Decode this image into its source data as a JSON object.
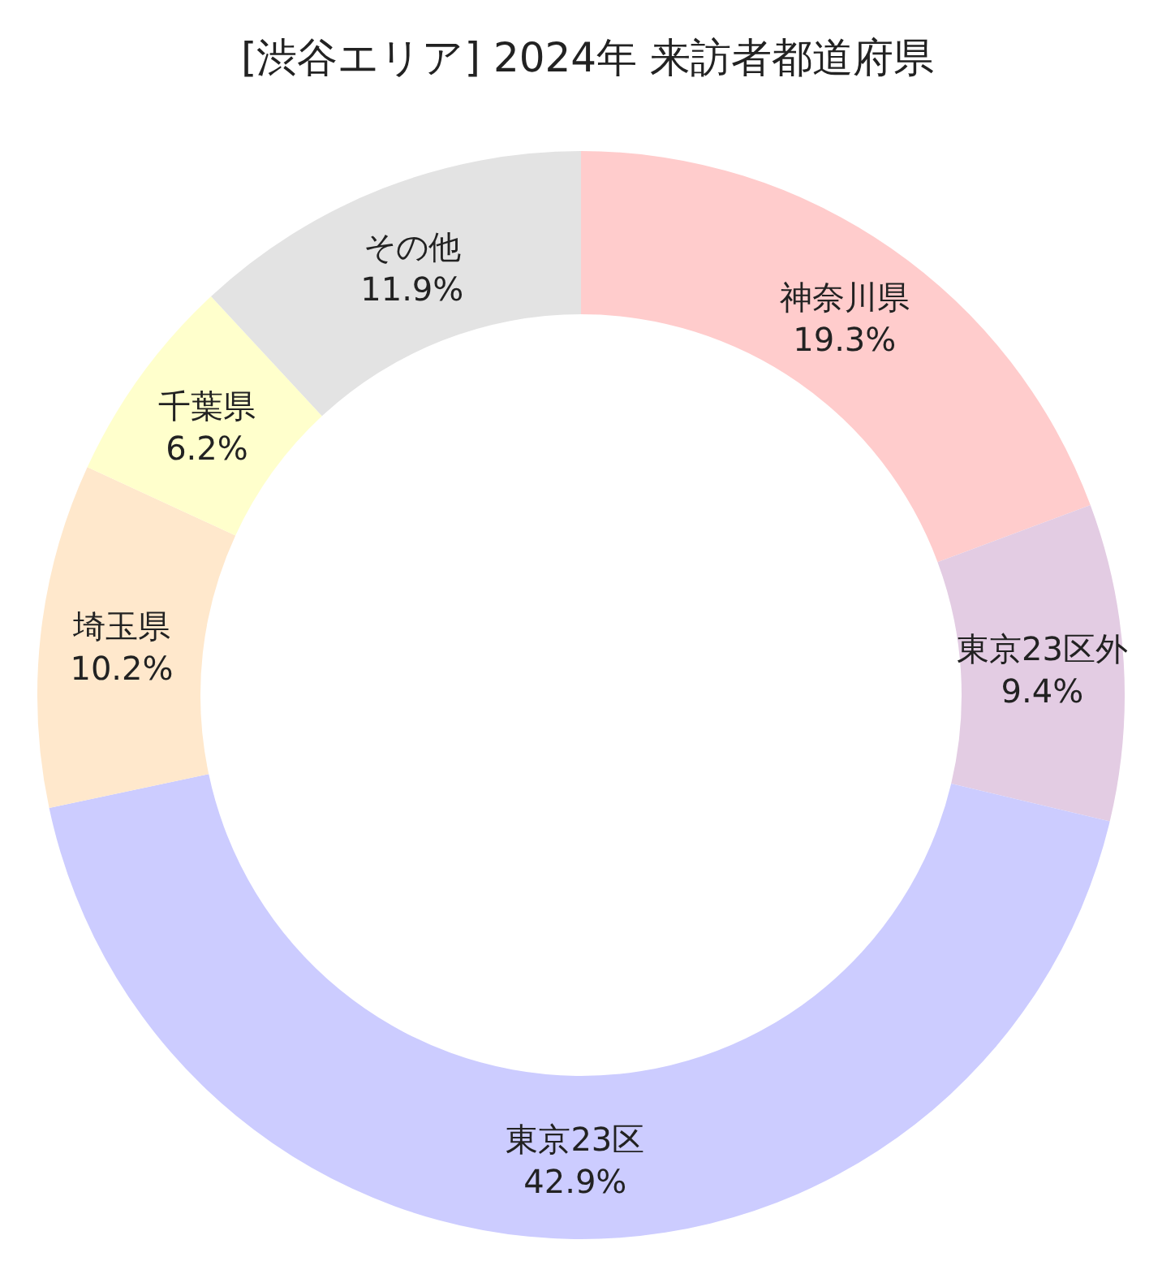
{
  "chart_data": {
    "type": "donut",
    "title": "[渋谷エリア] 2024年 来訪者都道府県",
    "categories": [
      "神奈川県",
      "東京23区外",
      "東京23区",
      "埼玉県",
      "千葉県",
      "その他"
    ],
    "values": [
      19.3,
      9.4,
      42.9,
      10.2,
      6.2,
      11.9
    ],
    "value_labels": [
      "19.3%",
      "9.4%",
      "42.9%",
      "10.2%",
      "6.2%",
      "11.9%"
    ],
    "colors": [
      "#ffcccc",
      "#e3cce3",
      "#ccccff",
      "#ffe8cc",
      "#ffffcc",
      "#e3e3e3"
    ],
    "legend": false
  }
}
